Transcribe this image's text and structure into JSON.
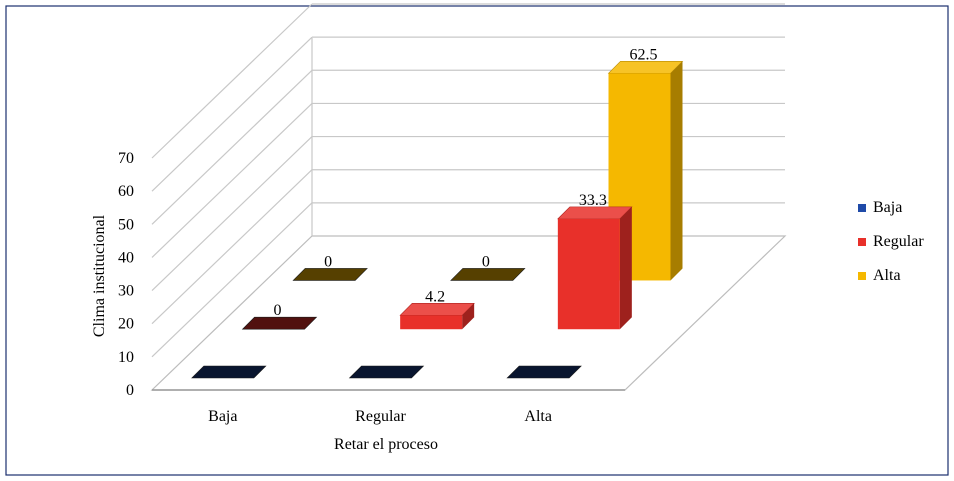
{
  "chart_data": {
    "type": "bar",
    "title": "",
    "xlabel": "Retar el proceso",
    "ylabel": "Clima institucional",
    "ylim": [
      0,
      70
    ],
    "yticks": [
      "0",
      "10",
      "20",
      "30",
      "40",
      "50",
      "60",
      "70"
    ],
    "categories": [
      "Baja",
      "Regular",
      "Alta"
    ],
    "series": [
      {
        "name": "Baja",
        "color": "#1f4aa8",
        "values": [
          0,
          0,
          0
        ]
      },
      {
        "name": "Regular",
        "color": "#e8302a",
        "values": [
          0,
          4.2,
          33.3
        ]
      },
      {
        "name": "Alta",
        "color": "#f5b800",
        "values": [
          0,
          0,
          62.5
        ]
      }
    ],
    "data_labels": {
      "Regular": [
        "0",
        "4.2",
        "33.3"
      ],
      "Alta": [
        "0",
        "0",
        "62.5"
      ]
    },
    "grid": true,
    "legend_position": "right"
  }
}
